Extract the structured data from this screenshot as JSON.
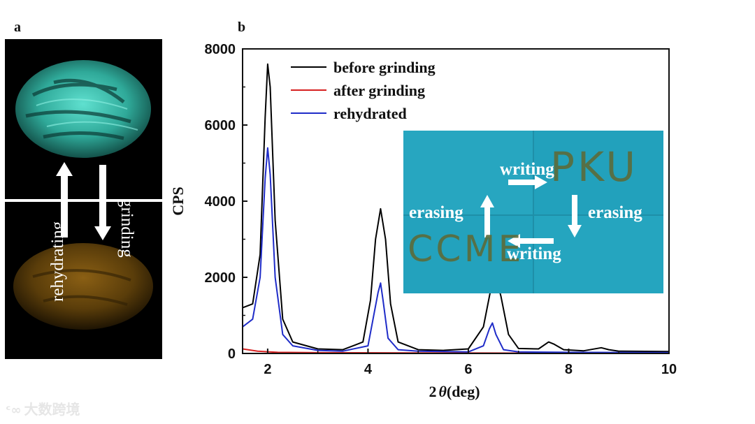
{
  "panels": {
    "a_label": "a",
    "b_label": "b"
  },
  "panel_a": {
    "rehydrating": "rehydrating",
    "grinding": "grinding",
    "top_color": "#39c3b0",
    "bottom_color": "#6a4a10"
  },
  "chart_data": {
    "type": "line",
    "xlabel": "2θ (deg)",
    "xlabel_prefix": "2",
    "xlabel_theta": "θ",
    "xlabel_suffix": "(deg)",
    "ylabel": "CPS",
    "xlim": [
      1.5,
      10
    ],
    "ylim": [
      0,
      8000
    ],
    "x_ticks": [
      "2",
      "4",
      "6",
      "8",
      "10"
    ],
    "y_ticks": [
      "0",
      "2000",
      "4000",
      "6000",
      "8000"
    ],
    "legend": [
      "before grinding",
      "after grinding",
      "rehydrated"
    ],
    "legend_position": "top-left",
    "series": [
      {
        "name": "before grinding",
        "color": "#000000",
        "x": [
          1.5,
          1.7,
          1.85,
          1.95,
          2.0,
          2.05,
          2.15,
          2.3,
          2.5,
          3.0,
          3.5,
          3.9,
          4.05,
          4.15,
          4.25,
          4.35,
          4.45,
          4.6,
          5.0,
          5.5,
          6.0,
          6.3,
          6.45,
          6.55,
          6.65,
          6.8,
          7.0,
          7.4,
          7.6,
          7.7,
          7.9,
          8.3,
          8.65,
          8.8,
          9.0,
          10.0
        ],
        "y": [
          1200,
          1300,
          2600,
          6200,
          7600,
          7000,
          3500,
          900,
          300,
          120,
          100,
          300,
          1400,
          3000,
          3800,
          3000,
          1300,
          300,
          100,
          80,
          120,
          700,
          1700,
          2000,
          1500,
          500,
          130,
          120,
          300,
          250,
          100,
          70,
          150,
          100,
          60,
          50
        ]
      },
      {
        "name": "after grinding",
        "color": "#d62020",
        "x": [
          1.5,
          1.8,
          2.2,
          3.0,
          5.0,
          7.0,
          10.0
        ],
        "y": [
          120,
          60,
          30,
          20,
          15,
          10,
          10
        ]
      },
      {
        "name": "rehydrated",
        "color": "#1f2cc8",
        "x": [
          1.5,
          1.7,
          1.85,
          1.95,
          2.0,
          2.05,
          2.15,
          2.3,
          2.5,
          3.0,
          3.5,
          4.0,
          4.1,
          4.2,
          4.25,
          4.3,
          4.4,
          4.6,
          5.0,
          6.0,
          6.3,
          6.42,
          6.48,
          6.55,
          6.7,
          7.0,
          8.0,
          10.0
        ],
        "y": [
          700,
          900,
          2000,
          4600,
          5400,
          4700,
          2000,
          500,
          200,
          80,
          60,
          200,
          900,
          1600,
          1850,
          1400,
          400,
          100,
          60,
          40,
          200,
          650,
          800,
          500,
          100,
          40,
          30,
          20
        ]
      }
    ]
  },
  "inset": {
    "writing_top": "writing",
    "writing_bottom": "writing",
    "erasing_left": "erasing",
    "erasing_right": "erasing",
    "text_pku": "PKU",
    "text_ccme": "CCME",
    "background": "#24a3bf"
  },
  "watermark": {
    "text": "大数跨境",
    "logo_icon": "logo-icon"
  }
}
